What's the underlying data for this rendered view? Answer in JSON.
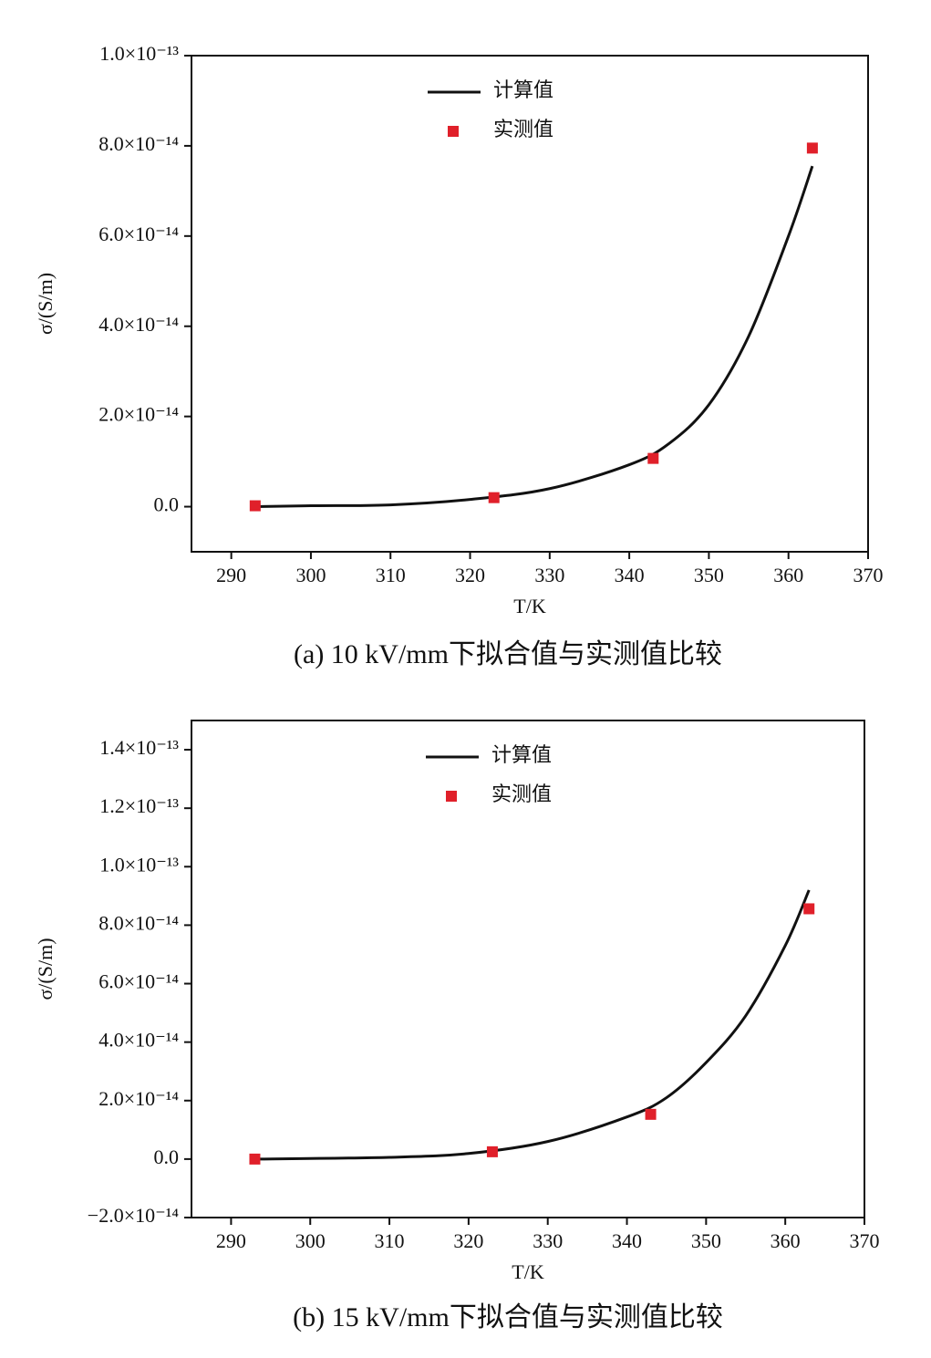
{
  "chart_data": [
    {
      "type": "line",
      "caption": "(a) 10 kV/mm下拟合值与实测值比较",
      "xlabel": "T/K",
      "ylabel": "σ/(S/m)",
      "xlim": [
        285,
        370
      ],
      "xticks": [
        290,
        300,
        310,
        320,
        330,
        340,
        350,
        360,
        370
      ],
      "ylim": [
        -1e-14,
        1e-13
      ],
      "yticks": [
        {
          "value": 0,
          "label": "0.0"
        },
        {
          "value": 2e-14,
          "label": "2.0×10⁻¹⁴"
        },
        {
          "value": 4e-14,
          "label": "4.0×10⁻¹⁴"
        },
        {
          "value": 6e-14,
          "label": "6.0×10⁻¹⁴"
        },
        {
          "value": 8e-14,
          "label": "8.0×10⁻¹⁴"
        },
        {
          "value": 1e-13,
          "label": "1.0×10⁻¹³"
        }
      ],
      "legend": "upper center",
      "series": [
        {
          "name": "计算值",
          "type": "line",
          "color": "#111111",
          "x": [
            293,
            300,
            310,
            320,
            330,
            340,
            345,
            350,
            355,
            360,
            363
          ],
          "values": [
            0,
            2e-16,
            4e-16,
            1.6e-15,
            4e-15,
            9.3e-15,
            1.4e-14,
            2.26e-14,
            3.78e-14,
            6e-14,
            7.55e-14
          ]
        },
        {
          "name": "实测值",
          "type": "scatter",
          "color": "#e0202a",
          "x": [
            293,
            323,
            343,
            363
          ],
          "values": [
            2e-16,
            2e-15,
            1.07e-14,
            7.95e-14
          ]
        }
      ]
    },
    {
      "type": "line",
      "caption": "(b) 15 kV/mm下拟合值与实测值比较",
      "xlabel": "T/K",
      "ylabel": "σ/(S/m)",
      "xlim": [
        285,
        370
      ],
      "xticks": [
        290,
        300,
        310,
        320,
        330,
        340,
        350,
        360,
        370
      ],
      "ylim": [
        -2e-14,
        1.5e-13
      ],
      "yticks": [
        {
          "value": -2e-14,
          "label": "−2.0×10⁻¹⁴"
        },
        {
          "value": 0,
          "label": "0.0"
        },
        {
          "value": 2e-14,
          "label": "2.0×10⁻¹⁴"
        },
        {
          "value": 4e-14,
          "label": "4.0×10⁻¹⁴"
        },
        {
          "value": 6e-14,
          "label": "6.0×10⁻¹⁴"
        },
        {
          "value": 8e-14,
          "label": "8.0×10⁻¹⁴"
        },
        {
          "value": 1e-13,
          "label": "1.0×10⁻¹³"
        },
        {
          "value": 1.2e-13,
          "label": "1.2×10⁻¹³"
        },
        {
          "value": 1.4e-13,
          "label": "1.4×10⁻¹³"
        }
      ],
      "legend": "upper center",
      "series": [
        {
          "name": "计算值",
          "type": "line",
          "color": "#111111",
          "x": [
            293,
            310,
            320,
            330,
            340,
            345,
            350,
            355,
            360,
            363
          ],
          "values": [
            0,
            6e-16,
            1.9e-15,
            6e-15,
            1.44e-14,
            2.1e-14,
            3.3e-14,
            4.9e-14,
            7.3e-14,
            9.2e-14
          ]
        },
        {
          "name": "实测值",
          "type": "scatter",
          "color": "#e0202a",
          "x": [
            293,
            323,
            343,
            363
          ],
          "values": [
            0,
            2.5e-15,
            1.53e-14,
            8.56e-14
          ]
        }
      ]
    }
  ]
}
